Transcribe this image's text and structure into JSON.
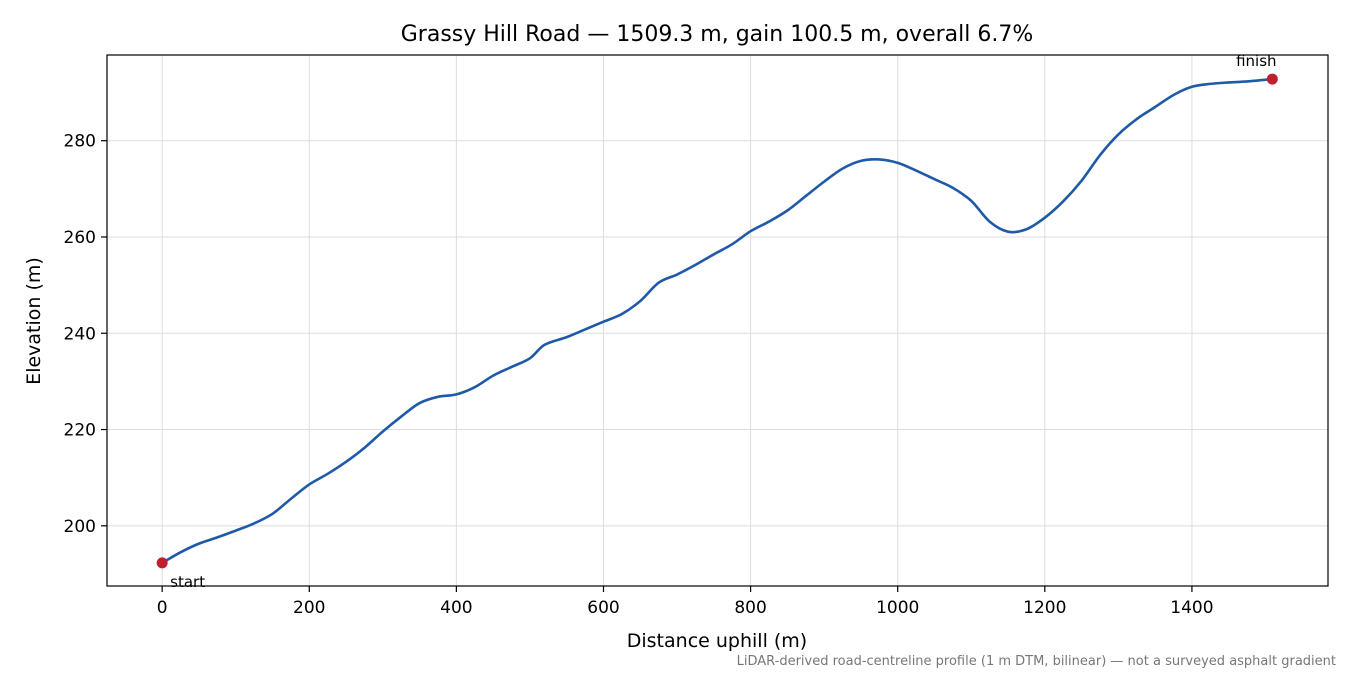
{
  "chart_data": {
    "type": "line",
    "title": "Grassy Hill Road — 1509.3 m, gain 100.5 m, overall 6.7%",
    "xlabel": "Distance uphill (m)",
    "ylabel": "Elevation (m)",
    "xlim": [
      -75,
      1585
    ],
    "ylim": [
      187.5,
      297.8
    ],
    "xticks": [
      0,
      200,
      400,
      600,
      800,
      1000,
      1200,
      1400
    ],
    "yticks": [
      200,
      220,
      240,
      260,
      280
    ],
    "grid": true,
    "line_color": "#1f5aa8",
    "marker_color": "#c0202e",
    "footnote": "LiDAR-derived road-centreline profile (1 m DTM, bilinear) — not a surveyed asphalt gradient",
    "series": [
      {
        "x": [
          0,
          25,
          50,
          75,
          100,
          125,
          150,
          175,
          200,
          225,
          250,
          275,
          300,
          325,
          350,
          375,
          400,
          425,
          450,
          475,
          500,
          520,
          550,
          575,
          600,
          625,
          650,
          675,
          700,
          725,
          750,
          775,
          800,
          825,
          850,
          875,
          900,
          925,
          950,
          975,
          1000,
          1025,
          1050,
          1075,
          1100,
          1125,
          1150,
          1175,
          1200,
          1225,
          1250,
          1275,
          1300,
          1325,
          1350,
          1375,
          1400,
          1425,
          1450,
          1475,
          1509.3
        ],
        "y": [
          192.3,
          194.5,
          196.3,
          197.6,
          199.0,
          200.5,
          202.5,
          205.6,
          208.6,
          210.8,
          213.3,
          216.2,
          219.6,
          222.7,
          225.5,
          226.8,
          227.3,
          228.8,
          231.2,
          233.0,
          234.8,
          237.6,
          239.2,
          240.8,
          242.4,
          244.0,
          246.7,
          250.5,
          252.2,
          254.2,
          256.4,
          258.5,
          261.2,
          263.2,
          265.5,
          268.5,
          271.5,
          274.2,
          275.8,
          276.1,
          275.4,
          273.8,
          272.0,
          270.2,
          267.5,
          263.2,
          261.1,
          261.6,
          264.0,
          267.4,
          271.7,
          277.0,
          281.3,
          284.5,
          287.0,
          289.5,
          291.2,
          291.8,
          292.1,
          292.3,
          292.8
        ]
      }
    ],
    "points": [
      {
        "label": "start",
        "x": 0,
        "y": 192.3
      },
      {
        "label": "finish",
        "x": 1509.3,
        "y": 292.8
      }
    ]
  }
}
